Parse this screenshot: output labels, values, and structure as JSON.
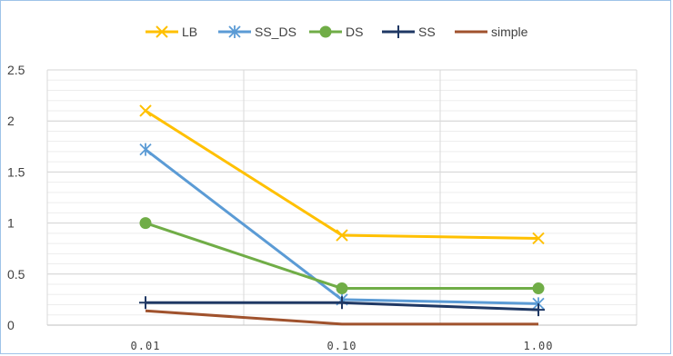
{
  "chart_data": {
    "type": "line",
    "title": "",
    "xlabel": "",
    "ylabel": "",
    "categories": [
      "0.01",
      "0.10",
      "1.00"
    ],
    "ylim": [
      0,
      2.5
    ],
    "yticks": [
      "0",
      "0.5",
      "1",
      "1.5",
      "2",
      "2.5"
    ],
    "grid": true,
    "minor_grid": true,
    "legend_position": "top",
    "series": [
      {
        "name": "LB",
        "values": [
          2.1,
          0.88,
          0.85
        ],
        "color": "#FFC000",
        "marker": "x"
      },
      {
        "name": "SS_DS",
        "values": [
          1.72,
          0.25,
          0.21
        ],
        "color": "#5B9BD5",
        "marker": "star"
      },
      {
        "name": "DS",
        "values": [
          1.0,
          0.36,
          0.36
        ],
        "color": "#70AD47",
        "marker": "circle"
      },
      {
        "name": "SS",
        "values": [
          0.22,
          0.22,
          0.15
        ],
        "color": "#1F3864",
        "marker": "plus"
      },
      {
        "name": "simple",
        "values": [
          0.14,
          0.01,
          0.01
        ],
        "color": "#A0522D",
        "marker": "none"
      }
    ]
  }
}
